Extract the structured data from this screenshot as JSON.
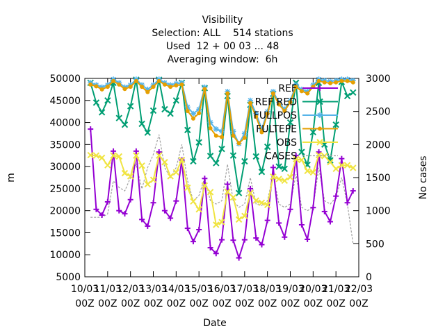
{
  "chart_data": {
    "type": "line",
    "title_lines": [
      "Visibility",
      "Selection: ALL    514 stations",
      "Used  12 + 00 03 ... 48",
      "Averaging window:  6h"
    ],
    "xlabel": "Date",
    "ylabel": "m",
    "y2label": "No cases",
    "ylim": [
      5000,
      50000
    ],
    "y2lim": [
      0,
      3000
    ],
    "xlim": [
      0,
      48
    ],
    "yticks": [
      "5000",
      "10000",
      "15000",
      "20000",
      "25000",
      "30000",
      "35000",
      "40000",
      "45000",
      "50000"
    ],
    "y2ticks": [
      "0",
      "500",
      "1000",
      "1500",
      "2000",
      "2500",
      "3000"
    ],
    "xtick_labels": [
      [
        "10/03",
        "00Z"
      ],
      [
        "11/03",
        "00Z"
      ],
      [
        "12/03",
        "00Z"
      ],
      [
        "13/03",
        "00Z"
      ],
      [
        "14/03",
        "00Z"
      ],
      [
        "15/03",
        "00Z"
      ],
      [
        "16/03",
        "00Z"
      ],
      [
        "17/03",
        "00Z"
      ],
      [
        "18/03",
        "00Z"
      ],
      [
        "19/03",
        "00Z"
      ],
      [
        "20/03",
        "00Z"
      ],
      [
        "21/03",
        "00Z"
      ],
      [
        "22/03",
        "00Z"
      ]
    ],
    "x": [
      1,
      2,
      3,
      4,
      5,
      6,
      7,
      8,
      9,
      10,
      11,
      12,
      13,
      14,
      15,
      16,
      17,
      18,
      19,
      20,
      21,
      22,
      23,
      24,
      25,
      26,
      27,
      28,
      29,
      30,
      31,
      32,
      33,
      34,
      35,
      36,
      37,
      38,
      39,
      40,
      41,
      42,
      43,
      44,
      45,
      46,
      47
    ],
    "series": [
      {
        "name": "REF",
        "color": "#9400d3",
        "marker": "plus",
        "axis": "y1",
        "values": [
          38500,
          20300,
          19000,
          22000,
          33500,
          20000,
          19300,
          22500,
          33500,
          18000,
          16500,
          21800,
          33300,
          20000,
          18300,
          22200,
          31500,
          16000,
          13000,
          15700,
          27300,
          11600,
          10300,
          13400,
          26000,
          13300,
          9300,
          13400,
          25000,
          13800,
          12300,
          17800,
          29800,
          17200,
          14000,
          20300,
          32500,
          16800,
          13500,
          20700,
          33300,
          19800,
          17500,
          23300,
          31800,
          21800,
          24500
        ]
      },
      {
        "name": "REF RED",
        "color": "#009e73",
        "marker": "x",
        "axis": "y1",
        "values": [
          49000,
          44500,
          42300,
          45000,
          49000,
          41000,
          39500,
          43700,
          49700,
          39700,
          37700,
          42700,
          49700,
          43000,
          42000,
          45000,
          49000,
          38300,
          31200,
          35500,
          47800,
          32400,
          30800,
          34000,
          46000,
          32500,
          24000,
          31200,
          44000,
          32300,
          28800,
          34500,
          46500,
          30000,
          29500,
          40000,
          49000,
          33300,
          30400,
          37800,
          49000,
          35000,
          31400,
          39500,
          49200,
          46000,
          46800
        ]
      },
      {
        "name": "FULLPOS",
        "color": "#56b4e9",
        "marker": "star",
        "axis": "y1",
        "values": [
          49000,
          48500,
          48000,
          48500,
          49800,
          49000,
          48000,
          48500,
          49800,
          48500,
          47500,
          48500,
          49800,
          49000,
          48500,
          48800,
          49000,
          43500,
          42000,
          43000,
          48000,
          40000,
          38500,
          38000,
          47000,
          38000,
          35200,
          37500,
          45000,
          42000,
          38500,
          42500,
          47000,
          44500,
          43000,
          45000,
          48500,
          47500,
          47000,
          48500,
          49800,
          49500,
          49300,
          49500,
          49800,
          49800,
          49500
        ]
      },
      {
        "name": "FULTEPE",
        "color": "#e69f00",
        "marker": "circle",
        "axis": "y1",
        "values": [
          48600,
          48200,
          47500,
          48100,
          49400,
          48600,
          47600,
          48100,
          49400,
          48100,
          46900,
          48100,
          49400,
          48600,
          48100,
          48400,
          48600,
          42600,
          40900,
          42100,
          47600,
          38700,
          37000,
          36700,
          46600,
          37000,
          35300,
          36500,
          44400,
          41300,
          37800,
          42000,
          46600,
          44100,
          42600,
          44600,
          48100,
          47100,
          46600,
          48100,
          49400,
          49100,
          48900,
          49100,
          49400,
          49400,
          49100
        ]
      },
      {
        "name": "OBS",
        "color": "#f0e442",
        "marker": "x",
        "axis": "y1",
        "values": [
          32600,
          32500,
          32000,
          30300,
          32500,
          32300,
          28500,
          27800,
          32500,
          30200,
          26000,
          27000,
          32500,
          31000,
          27800,
          28700,
          31500,
          25200,
          22100,
          20300,
          25700,
          24200,
          16800,
          17400,
          24300,
          23000,
          18000,
          18800,
          24000,
          22300,
          21800,
          21300,
          27700,
          27200,
          26800,
          27600,
          31700,
          31500,
          29000,
          28700,
          32600,
          32400,
          31000,
          29500,
          30300,
          30300,
          29700
        ]
      },
      {
        "name": "CASES",
        "color": "#a0a0a0",
        "dash": true,
        "axis": "y2",
        "values": [
          900,
          900,
          900,
          950,
          1450,
          1350,
          1300,
          1500,
          1700,
          1330,
          1650,
          1850,
          2150,
          1650,
          1500,
          1650,
          2000,
          1450,
          1150,
          1230,
          1500,
          1150,
          1100,
          1150,
          1700,
          1150,
          1050,
          1100,
          1500,
          1100,
          1080,
          1150,
          1550,
          1100,
          1050,
          1100,
          1550,
          1050,
          1000,
          1050,
          1650,
          1150,
          1100,
          1200,
          1500,
          1100,
          500
        ]
      }
    ],
    "legend_placement": "top-right",
    "grid": false
  }
}
